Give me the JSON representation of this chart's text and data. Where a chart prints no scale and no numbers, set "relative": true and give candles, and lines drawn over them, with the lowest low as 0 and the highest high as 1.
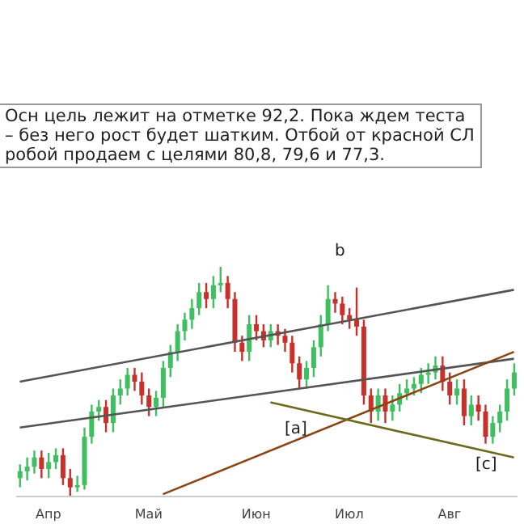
{
  "chart_data": {
    "type": "candlestick",
    "relative": true,
    "categories": [
      null,
      null,
      null,
      null,
      "Апр",
      null,
      null,
      null,
      null,
      null,
      null,
      null,
      null,
      null,
      null,
      null,
      null,
      null,
      "Май",
      null,
      null,
      null,
      null,
      null,
      null,
      null,
      null,
      null,
      null,
      null,
      null,
      null,
      null,
      "Июн",
      null,
      null,
      null,
      null,
      null,
      null,
      null,
      null,
      null,
      null,
      null,
      null,
      "Июл",
      null,
      null,
      null,
      null,
      null,
      null,
      null,
      null,
      null,
      null,
      null,
      null,
      null,
      "Авг",
      null,
      null,
      null,
      null,
      null,
      null,
      null,
      null,
      null
    ],
    "ohlc": [
      [
        0.08,
        0.14,
        0.04,
        0.11
      ],
      [
        0.11,
        0.17,
        0.07,
        0.13
      ],
      [
        0.13,
        0.2,
        0.1,
        0.17
      ],
      [
        0.17,
        0.2,
        0.08,
        0.12
      ],
      [
        0.12,
        0.19,
        0.08,
        0.15
      ],
      [
        0.15,
        0.21,
        0.12,
        0.18
      ],
      [
        0.18,
        0.21,
        0.05,
        0.08
      ],
      [
        0.08,
        0.12,
        0,
        0.04
      ],
      [
        0.04,
        0.09,
        0.02,
        0.05
      ],
      [
        0.05,
        0.3,
        0.03,
        0.26
      ],
      [
        0.26,
        0.4,
        0.23,
        0.37
      ],
      [
        0.37,
        0.42,
        0.33,
        0.39
      ],
      [
        0.39,
        0.42,
        0.28,
        0.32
      ],
      [
        0.32,
        0.47,
        0.28,
        0.44
      ],
      [
        0.44,
        0.51,
        0.4,
        0.47
      ],
      [
        0.47,
        0.56,
        0.44,
        0.53
      ],
      [
        0.53,
        0.56,
        0.46,
        0.5
      ],
      [
        0.5,
        0.54,
        0.4,
        0.44
      ],
      [
        0.44,
        0.47,
        0.35,
        0.39
      ],
      [
        0.39,
        0.46,
        0.35,
        0.43
      ],
      [
        0.43,
        0.59,
        0.39,
        0.56
      ],
      [
        0.56,
        0.66,
        0.52,
        0.63
      ],
      [
        0.63,
        0.75,
        0.59,
        0.72
      ],
      [
        0.72,
        0.8,
        0.68,
        0.77
      ],
      [
        0.77,
        0.86,
        0.73,
        0.82
      ],
      [
        0.82,
        0.93,
        0.79,
        0.89
      ],
      [
        0.89,
        0.93,
        0.82,
        0.86
      ],
      [
        0.86,
        0.96,
        0.82,
        0.92
      ],
      [
        0.92,
        1,
        0.89,
        0.93
      ],
      [
        0.93,
        0.96,
        0.82,
        0.86
      ],
      [
        0.86,
        0.89,
        0.63,
        0.67
      ],
      [
        0.67,
        0.7,
        0.59,
        0.63
      ],
      [
        0.63,
        0.79,
        0.59,
        0.75
      ],
      [
        0.75,
        0.79,
        0.68,
        0.72
      ],
      [
        0.72,
        0.75,
        0.65,
        0.68
      ],
      [
        0.68,
        0.75,
        0.65,
        0.72
      ],
      [
        0.72,
        0.75,
        0.66,
        0.7
      ],
      [
        0.7,
        0.73,
        0.63,
        0.67
      ],
      [
        0.67,
        0.7,
        0.54,
        0.58
      ],
      [
        0.58,
        0.61,
        0.47,
        0.51
      ],
      [
        0.51,
        0.59,
        0.47,
        0.56
      ],
      [
        0.56,
        0.68,
        0.52,
        0.65
      ],
      [
        0.65,
        0.79,
        0.61,
        0.75
      ],
      [
        0.75,
        0.92,
        0.72,
        0.86
      ],
      [
        0.86,
        0.89,
        0.8,
        0.84
      ],
      [
        0.84,
        0.87,
        0.75,
        0.79
      ],
      [
        0.79,
        0.82,
        0.73,
        0.77
      ],
      [
        0.77,
        0.91,
        0.7,
        0.74
      ],
      [
        0.74,
        0.77,
        0.4,
        0.44
      ],
      [
        0.44,
        0.47,
        0.32,
        0.37
      ],
      [
        0.37,
        0.47,
        0.33,
        0.44
      ],
      [
        0.44,
        0.47,
        0.32,
        0.37
      ],
      [
        0.37,
        0.44,
        0.33,
        0.4
      ],
      [
        0.4,
        0.49,
        0.37,
        0.45
      ],
      [
        0.45,
        0.51,
        0.42,
        0.47
      ],
      [
        0.47,
        0.52,
        0.44,
        0.49
      ],
      [
        0.49,
        0.56,
        0.45,
        0.53
      ],
      [
        0.53,
        0.58,
        0.49,
        0.54
      ],
      [
        0.54,
        0.61,
        0.51,
        0.57
      ],
      [
        0.57,
        0.61,
        0.46,
        0.5
      ],
      [
        0.5,
        0.54,
        0.4,
        0.44
      ],
      [
        0.44,
        0.51,
        0.4,
        0.47
      ],
      [
        0.47,
        0.51,
        0.31,
        0.35
      ],
      [
        0.35,
        0.44,
        0.31,
        0.4
      ],
      [
        0.4,
        0.44,
        0.33,
        0.37
      ],
      [
        0.37,
        0.4,
        0.23,
        0.26
      ],
      [
        0.26,
        0.35,
        0.23,
        0.32
      ],
      [
        0.32,
        0.4,
        0.28,
        0.37
      ],
      [
        0.37,
        0.51,
        0.33,
        0.47
      ],
      [
        0.47,
        0.58,
        0.44,
        0.54
      ]
    ],
    "colors": [
      "#3fbf5f",
      "#3fbf5f",
      "#3fbf5f",
      "#c8302a",
      "#3fbf5f",
      "#3fbf5f",
      "#c8302a",
      "#c8302a",
      "#3fbf5f",
      "#3fbf5f",
      "#3fbf5f",
      "#3fbf5f",
      "#c8302a",
      "#3fbf5f",
      "#3fbf5f",
      "#3fbf5f",
      "#c8302a",
      "#c8302a",
      "#c8302a",
      "#3fbf5f",
      "#3fbf5f",
      "#3fbf5f",
      "#3fbf5f",
      "#3fbf5f",
      "#3fbf5f",
      "#3fbf5f",
      "#c8302a",
      "#3fbf5f",
      "#3fbf5f",
      "#c8302a",
      "#c8302a",
      "#c8302a",
      "#3fbf5f",
      "#c8302a",
      "#c8302a",
      "#3fbf5f",
      "#c8302a",
      "#c8302a",
      "#c8302a",
      "#c8302a",
      "#3fbf5f",
      "#3fbf5f",
      "#3fbf5f",
      "#3fbf5f",
      "#c8302a",
      "#c8302a",
      "#c8302a",
      "#c8302a",
      "#c8302a",
      "#c8302a",
      "#3fbf5f",
      "#c8302a",
      "#3fbf5f",
      "#3fbf5f",
      "#3fbf5f",
      "#3fbf5f",
      "#3fbf5f",
      "#3fbf5f",
      "#3fbf5f",
      "#c8302a",
      "#c8302a",
      "#3fbf5f",
      "#c8302a",
      "#3fbf5f",
      "#c8302a",
      "#c8302a",
      "#3fbf5f",
      "#3fbf5f",
      "#3fbf5f",
      "#3fbf5f"
    ],
    "series": [
      {
        "type": "line",
        "color": "#555555",
        "values": [
          0.5,
          null,
          null,
          null,
          null,
          null,
          null,
          null,
          null,
          null,
          null,
          null,
          null,
          null,
          null,
          null,
          null,
          null,
          null,
          null,
          null,
          null,
          null,
          null,
          null,
          null,
          null,
          null,
          null,
          null,
          null,
          null,
          null,
          null,
          null,
          null,
          null,
          null,
          null,
          null,
          null,
          null,
          null,
          null,
          null,
          null,
          null,
          null,
          null,
          null,
          null,
          null,
          null,
          null,
          null,
          null,
          null,
          null,
          null,
          null,
          null,
          null,
          null,
          null,
          null,
          null,
          null,
          null,
          null,
          0.9
        ]
      },
      {
        "type": "line",
        "color": "#555555",
        "values": [
          0.3,
          null,
          null,
          null,
          null,
          null,
          null,
          null,
          null,
          null,
          null,
          null,
          null,
          null,
          null,
          null,
          null,
          null,
          null,
          null,
          null,
          null,
          null,
          null,
          null,
          null,
          null,
          null,
          null,
          null,
          null,
          null,
          null,
          null,
          null,
          null,
          null,
          null,
          null,
          null,
          null,
          null,
          null,
          null,
          null,
          null,
          null,
          null,
          null,
          null,
          null,
          null,
          null,
          null,
          null,
          null,
          null,
          null,
          null,
          null,
          null,
          null,
          null,
          null,
          null,
          null,
          null,
          null,
          null,
          0.6
        ]
      },
      {
        "type": "line",
        "color": "#8b4513",
        "values": [
          null,
          null,
          null,
          null,
          null,
          null,
          null,
          null,
          null,
          null,
          null,
          null,
          null,
          null,
          null,
          null,
          null,
          null,
          null,
          null,
          0.01,
          null,
          null,
          null,
          null,
          null,
          null,
          null,
          null,
          null,
          null,
          null,
          null,
          null,
          null,
          null,
          null,
          null,
          null,
          null,
          null,
          null,
          null,
          null,
          null,
          null,
          null,
          null,
          null,
          null,
          null,
          null,
          null,
          null,
          null,
          null,
          null,
          null,
          null,
          null,
          null,
          null,
          null,
          null,
          null,
          null,
          null,
          null,
          null,
          0.63
        ]
      },
      {
        "type": "line",
        "color": "#6b6b1e",
        "values": [
          null,
          null,
          null,
          null,
          null,
          null,
          null,
          null,
          null,
          null,
          null,
          null,
          null,
          null,
          null,
          null,
          null,
          null,
          null,
          null,
          null,
          null,
          null,
          null,
          null,
          null,
          null,
          null,
          null,
          null,
          null,
          null,
          null,
          null,
          null,
          0.41,
          null,
          null,
          null,
          null,
          null,
          null,
          null,
          null,
          null,
          null,
          null,
          null,
          null,
          null,
          null,
          null,
          null,
          null,
          null,
          null,
          null,
          null,
          null,
          null,
          null,
          null,
          null,
          null,
          null,
          null,
          null,
          null,
          null,
          0.17
        ]
      }
    ],
    "annotations": [
      "Осн цель лежит на отметке 92,2. Пока ждем теста\n– без него рост будет шатким. Отбой от красной СЛ\nробой продаем с целями 80,8, 79,6 и 77,3.",
      "b",
      "[a]",
      "[c]"
    ]
  }
}
